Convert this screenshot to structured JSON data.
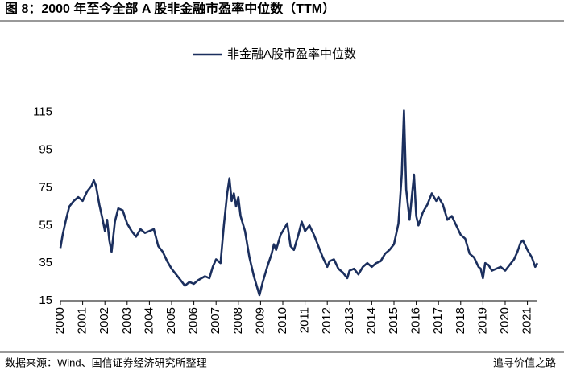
{
  "chart_data": {
    "type": "line",
    "title": "图 8：2000 年至今全部 A 股非金融市盈率中位数（TTM）",
    "source": "数据来源：Wind、国信证券经济研究所整理",
    "watermark": "追寻价值之路",
    "legend": "top",
    "x": [
      2000.0,
      2000.1,
      2000.25,
      2000.4,
      2000.6,
      2000.8,
      2001.0,
      2001.2,
      2001.4,
      2001.5,
      2001.6,
      2001.75,
      2001.9,
      2002.0,
      2002.1,
      2002.2,
      2002.3,
      2002.45,
      2002.6,
      2002.8,
      2003.0,
      2003.2,
      2003.4,
      2003.6,
      2003.8,
      2004.0,
      2004.2,
      2004.4,
      2004.6,
      2004.8,
      2005.0,
      2005.2,
      2005.4,
      2005.6,
      2005.8,
      2006.0,
      2006.2,
      2006.5,
      2006.7,
      2006.85,
      2007.0,
      2007.2,
      2007.35,
      2007.5,
      2007.6,
      2007.7,
      2007.8,
      2007.9,
      2008.0,
      2008.1,
      2008.3,
      2008.5,
      2008.7,
      2008.85,
      2008.95,
      2009.1,
      2009.3,
      2009.5,
      2009.6,
      2009.7,
      2009.9,
      2010.0,
      2010.2,
      2010.35,
      2010.5,
      2010.7,
      2010.85,
      2011.0,
      2011.2,
      2011.4,
      2011.6,
      2011.8,
      2012.0,
      2012.1,
      2012.3,
      2012.5,
      2012.7,
      2012.9,
      2013.0,
      2013.2,
      2013.4,
      2013.6,
      2013.8,
      2014.0,
      2014.2,
      2014.4,
      2014.6,
      2014.8,
      2015.0,
      2015.2,
      2015.35,
      2015.45,
      2015.55,
      2015.7,
      2015.8,
      2015.9,
      2016.0,
      2016.1,
      2016.3,
      2016.5,
      2016.7,
      2016.9,
      2017.0,
      2017.2,
      2017.4,
      2017.6,
      2017.8,
      2018.0,
      2018.2,
      2018.4,
      2018.6,
      2018.8,
      2018.9,
      2019.0,
      2019.1,
      2019.25,
      2019.4,
      2019.6,
      2019.8,
      2020.0,
      2020.2,
      2020.4,
      2020.55,
      2020.7,
      2020.8,
      2021.0,
      2021.2,
      2021.35,
      2021.45
    ],
    "series": [
      {
        "name": "非金融A股市盈率中位数",
        "color": "#1b2f5e",
        "values": [
          43,
          50,
          58,
          65,
          68,
          70,
          68,
          73,
          76,
          79,
          76,
          66,
          58,
          52,
          58,
          47,
          41,
          57,
          64,
          63,
          56,
          52,
          49,
          53,
          51,
          52,
          53,
          44,
          41,
          36,
          32,
          29,
          26,
          23,
          25,
          24,
          26,
          28,
          27,
          33,
          37,
          35,
          55,
          72,
          80,
          68,
          72,
          65,
          70,
          60,
          52,
          38,
          28,
          22,
          18,
          25,
          33,
          40,
          45,
          42,
          50,
          52,
          56,
          44,
          42,
          50,
          57,
          52,
          55,
          50,
          44,
          38,
          33,
          36,
          37,
          32,
          30,
          27,
          31,
          32,
          29,
          33,
          35,
          33,
          35,
          36,
          40,
          42,
          45,
          56,
          82,
          116,
          74,
          58,
          70,
          82,
          60,
          55,
          62,
          66,
          72,
          68,
          70,
          66,
          58,
          60,
          55,
          50,
          48,
          40,
          38,
          33,
          32,
          27,
          35,
          34,
          31,
          32,
          33,
          31,
          34,
          37,
          41,
          46,
          47,
          42,
          38,
          33,
          35
        ]
      }
    ],
    "xlim": [
      2000,
      2021.45
    ],
    "xticks": [
      {
        "value": 2000,
        "label": "2000"
      },
      {
        "value": 2001,
        "label": "2001"
      },
      {
        "value": 2002,
        "label": "2002"
      },
      {
        "value": 2003,
        "label": "2003"
      },
      {
        "value": 2004,
        "label": "2004"
      },
      {
        "value": 2005,
        "label": "2005"
      },
      {
        "value": 2006,
        "label": "2006"
      },
      {
        "value": 2007,
        "label": "2007"
      },
      {
        "value": 2008,
        "label": "2008"
      },
      {
        "value": 2009,
        "label": "2009"
      },
      {
        "value": 2010,
        "label": "2010"
      },
      {
        "value": 2011,
        "label": "2011"
      },
      {
        "value": 2012,
        "label": "2012"
      },
      {
        "value": 2013,
        "label": "2013"
      },
      {
        "value": 2014,
        "label": "2014"
      },
      {
        "value": 2015,
        "label": "2015"
      },
      {
        "value": 2016,
        "label": "2016"
      },
      {
        "value": 2017,
        "label": "2017"
      },
      {
        "value": 2018,
        "label": "2018"
      },
      {
        "value": 2019,
        "label": "2019"
      },
      {
        "value": 2020,
        "label": "2020"
      },
      {
        "value": 2021,
        "label": "2021"
      }
    ],
    "ylim": [
      15,
      120
    ],
    "yticks": [
      15,
      35,
      55,
      75,
      95,
      115
    ],
    "grid": false
  }
}
